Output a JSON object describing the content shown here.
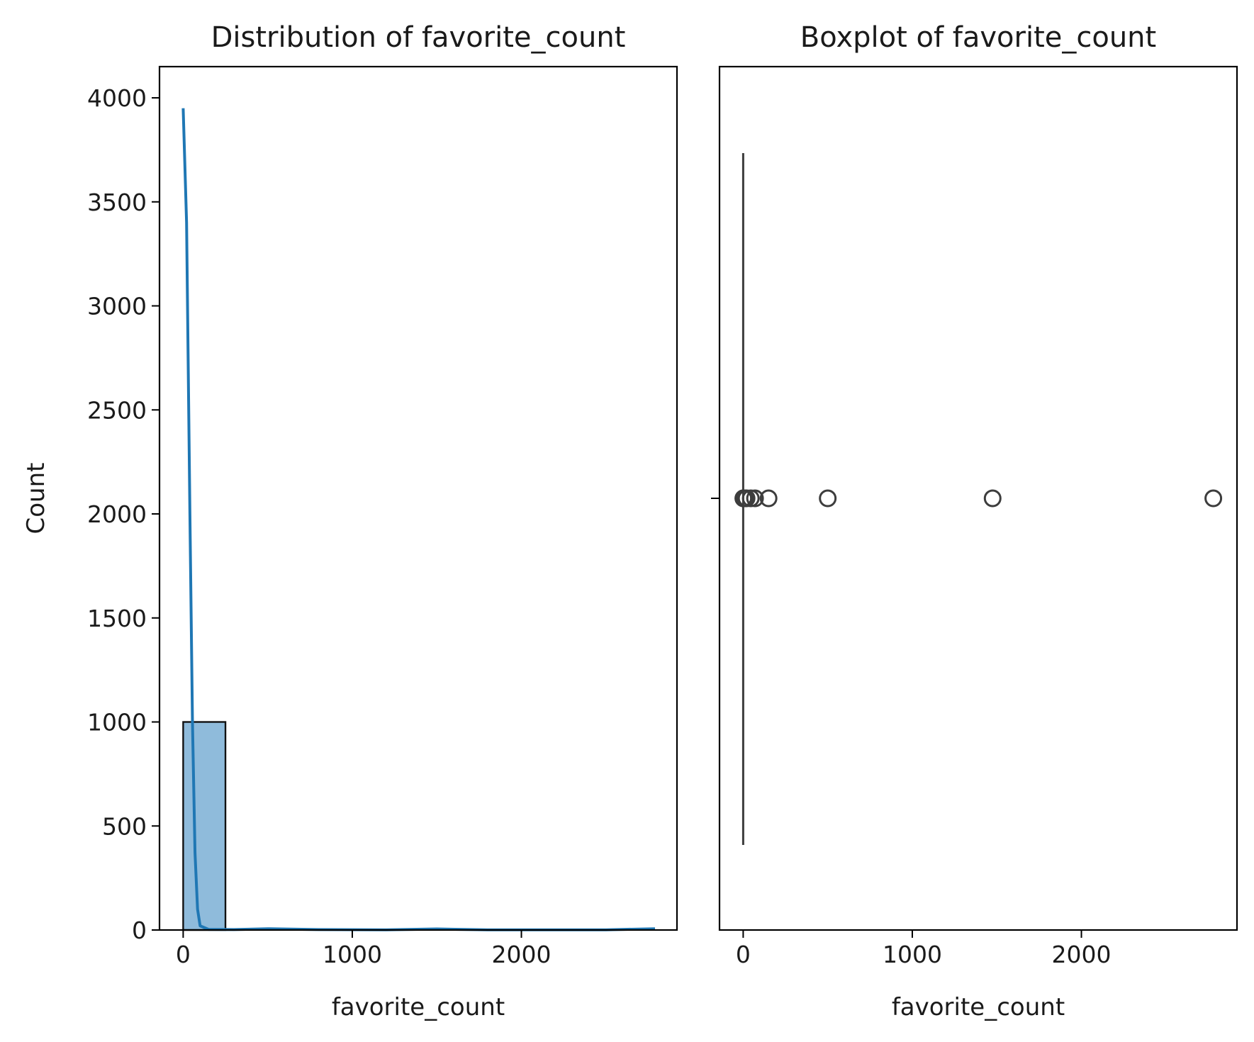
{
  "chart_data": [
    {
      "type": "bar",
      "title": "Distribution of favorite_count",
      "xlabel": "favorite_count",
      "ylabel": "Count",
      "xlim": [
        -140,
        2920
      ],
      "ylim": [
        0,
        4150
      ],
      "xticks": [
        0,
        1000,
        2000
      ],
      "yticks": [
        0,
        500,
        1000,
        1500,
        2000,
        2500,
        3000,
        3500,
        4000
      ],
      "bins": [
        {
          "x0": 0,
          "x1": 250,
          "count": 1000
        }
      ],
      "kde": {
        "name": "",
        "x": [
          0,
          20,
          40,
          55,
          70,
          85,
          100,
          150,
          300,
          500,
          800,
          1200,
          1500,
          1800,
          2200,
          2500,
          2790
        ],
        "y": [
          3950,
          3400,
          2000,
          1000,
          370,
          100,
          20,
          3,
          2,
          6,
          2,
          1,
          5,
          1,
          1,
          1,
          6
        ]
      },
      "bar_color": "#8fbbdb",
      "line_color": "#1f77b4"
    },
    {
      "type": "box",
      "title": "Boxplot of favorite_count",
      "xlabel": "favorite_count",
      "ylabel": "",
      "xlim": [
        -140,
        2920
      ],
      "xticks": [
        0,
        1000,
        2000
      ],
      "box": {
        "min": 0,
        "q1": 0,
        "median": 0,
        "q3": 0,
        "max": 0
      },
      "outliers": [
        1,
        2,
        3,
        5,
        8,
        12,
        20,
        45,
        70,
        150,
        500,
        1475,
        2780
      ],
      "color": "#3d3d3d"
    }
  ]
}
